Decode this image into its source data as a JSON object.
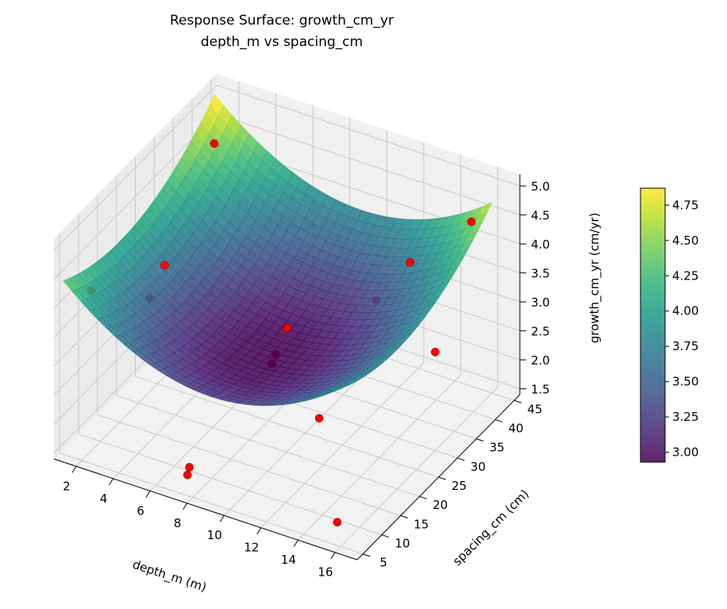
{
  "chart_data": {
    "type": "surface3d",
    "title": "Response Surface: growth_cm_yr",
    "subtitle": "depth_m vs spacing_cm",
    "xlabel": "depth_m (m)",
    "ylabel": "spacing_cm (cm)",
    "zlabel": "growth_cm_yr (cm/yr)",
    "xlim": [
      0.8,
      17.2
    ],
    "ylim": [
      3.5,
      46.5
    ],
    "zlim": [
      1.4,
      5.2
    ],
    "xticks": [
      2,
      4,
      6,
      8,
      10,
      12,
      14,
      16
    ],
    "yticks": [
      5,
      10,
      15,
      20,
      25,
      30,
      35,
      40,
      45
    ],
    "zticks": [
      "1.5",
      "2.0",
      "2.5",
      "3.0",
      "3.5",
      "4.0",
      "4.5",
      "5.0"
    ],
    "grid": true,
    "colormap": "viridis",
    "surface": {
      "x_range": [
        1,
        16
      ],
      "y_range": [
        5,
        45
      ],
      "z_min": 2.93,
      "z_max": 4.87,
      "alpha": 0.85
    },
    "colorbar": {
      "range": [
        2.93,
        4.87
      ],
      "ticks": [
        "3.00",
        "3.25",
        "3.50",
        "3.75",
        "4.00",
        "4.25",
        "4.50",
        "4.75"
      ]
    },
    "points_color": "#ff0000",
    "points": [
      {
        "depth": 2,
        "spacing": 40,
        "growth": 4.55
      },
      {
        "depth": 15.5,
        "spacing": 42,
        "growth": 4.5
      },
      {
        "depth": 1.5,
        "spacing": 10,
        "growth": 3.95
      },
      {
        "depth": 3,
        "spacing": 22,
        "growth": 3.75
      },
      {
        "depth": 3,
        "spacing": 18,
        "growth": 3.45
      },
      {
        "depth": 13,
        "spacing": 38,
        "growth": 3.8
      },
      {
        "depth": 12,
        "spacing": 34,
        "growth": 3.3
      },
      {
        "depth": 9,
        "spacing": 25,
        "growth": 3.1
      },
      {
        "depth": 9,
        "spacing": 22,
        "growth": 2.85
      },
      {
        "depth": 9,
        "spacing": 21,
        "growth": 2.75
      },
      {
        "depth": 16,
        "spacing": 30,
        "growth": 3.1
      },
      {
        "depth": 13,
        "spacing": 14,
        "growth": 2.7
      },
      {
        "depth": 7,
        "spacing": 9,
        "growth": 1.55
      },
      {
        "depth": 7,
        "spacing": 8.5,
        "growth": 1.45
      },
      {
        "depth": 15,
        "spacing": 9,
        "growth": 1.45
      }
    ]
  }
}
